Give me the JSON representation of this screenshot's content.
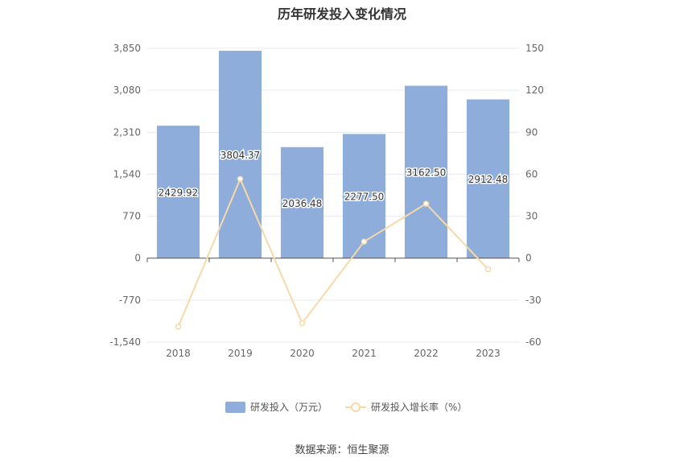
{
  "title": "历年研发投入变化情况",
  "source": "数据来源：恒生聚源",
  "colors": {
    "bar": "#8eadda",
    "line": "#f7d9a7",
    "grid": "#e6e9f0",
    "axis": "#666666"
  },
  "chart_data": {
    "type": "bar",
    "categories": [
      "2018",
      "2019",
      "2020",
      "2021",
      "2022",
      "2023"
    ],
    "series": [
      {
        "name": "研发投入（万元）",
        "type": "bar",
        "axis": "left",
        "values": [
          2429.92,
          3804.37,
          2036.48,
          2277.5,
          3162.5,
          2912.48
        ],
        "labels": [
          "2429.92",
          "3804.37",
          "2036.48",
          "2277.50",
          "3162.50",
          "2912.48"
        ]
      },
      {
        "name": "研发投入增长率（%）",
        "type": "line",
        "axis": "right",
        "values": [
          -49.0,
          56.6,
          -46.5,
          11.8,
          38.9,
          -7.9
        ]
      }
    ],
    "y_left": {
      "min": -1540,
      "max": 3850,
      "ticks": [
        "3,850",
        "3,080",
        "2,310",
        "1,540",
        "770",
        "0",
        "-770",
        "-1,540"
      ]
    },
    "y_right": {
      "min": -60,
      "max": 150,
      "ticks": [
        "150",
        "120",
        "90",
        "60",
        "30",
        "0",
        "-30",
        "-60"
      ]
    },
    "grid": true,
    "legend_position": "bottom"
  }
}
